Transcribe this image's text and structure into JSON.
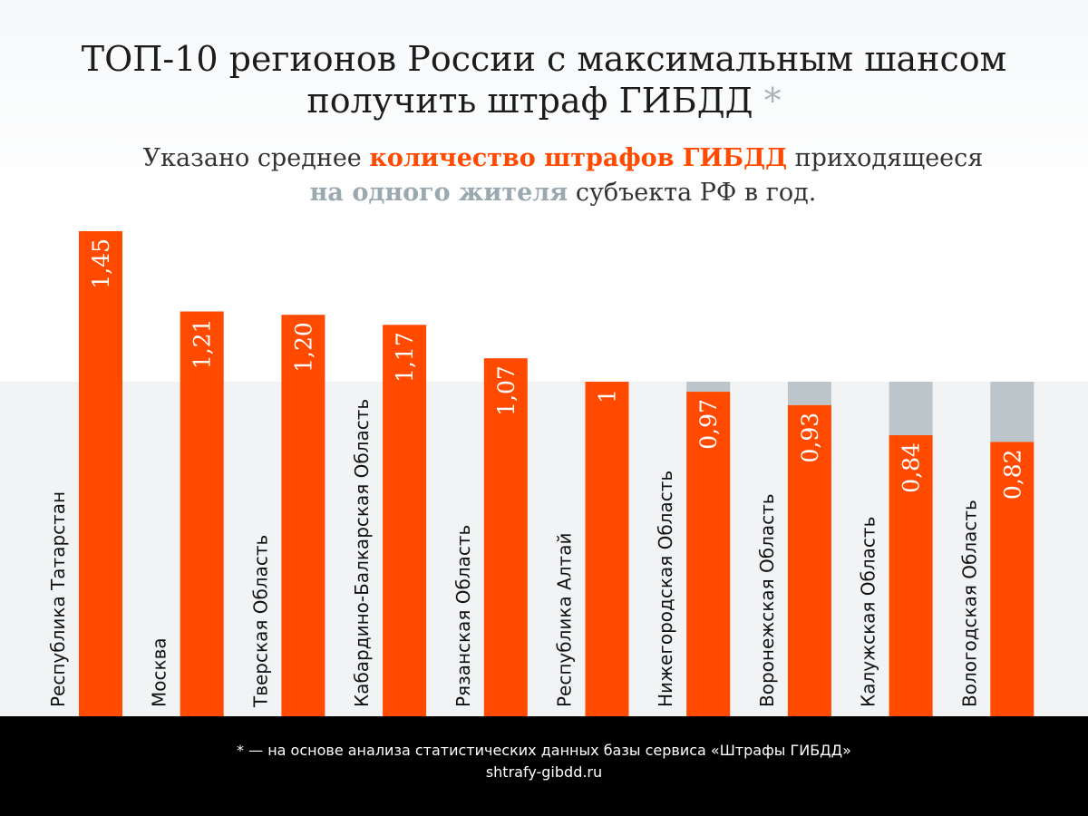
{
  "title": {
    "line1": "ТОП-10 регионов России с максимальным шансом",
    "line2": "получить штраф ГИБДД",
    "asterisk": "*"
  },
  "subtitle": {
    "part1": "Указано среднее ",
    "highlight1": "количество штрафов ГИБДД",
    "part2": " приходящееся",
    "highlight2": "на одного жителя",
    "part3": " субъекта РФ в год."
  },
  "chart_data": {
    "type": "bar",
    "categories": [
      "Республика Татарстан",
      "Москва",
      "Тверская Область",
      "Кабардино-Балкарская Область",
      "Рязанская Область",
      "Республика Алтай",
      "Нижегородская Область",
      "Воронежская Область",
      "Калужская Область",
      "Вологодская Область"
    ],
    "values": [
      1.45,
      1.21,
      1.2,
      1.17,
      1.07,
      1,
      0.97,
      0.93,
      0.84,
      0.82
    ],
    "value_labels": [
      "1,45",
      "1,21",
      "1,20",
      "1,17",
      "1,07",
      "1",
      "0,97",
      "0,93",
      "0,84",
      "0,82"
    ],
    "reference_value": 1,
    "ylim": [
      0,
      1.45
    ],
    "grid": false,
    "bar_color": "#ff4a00",
    "gap_color": "#bcc6ca"
  },
  "footer": {
    "note": "* —  на основе анализа статистических данных базы сервиса «Штрафы ГИБДД»",
    "site": "shtrafy-gibdd.ru"
  }
}
